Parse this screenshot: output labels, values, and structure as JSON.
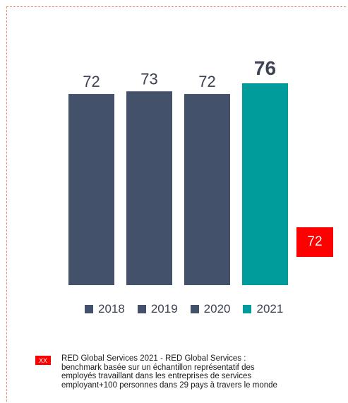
{
  "chart_data": {
    "type": "bar",
    "categories": [
      "2018",
      "2019",
      "2020",
      "2021"
    ],
    "values": [
      72,
      73,
      72,
      76
    ],
    "data_labels": [
      "72",
      "73",
      "72",
      "76"
    ],
    "ylim": [
      0,
      76
    ],
    "grid": false,
    "legend": {
      "placement": "bottom",
      "entries": [
        "2018",
        "2019",
        "2020",
        "2021"
      ]
    },
    "colors": [
      "#44516a",
      "#44516a",
      "#44516a",
      "#009b9b"
    ],
    "benchmark": {
      "value": 72,
      "label": "72",
      "color": "#ff0000"
    }
  },
  "footnote": {
    "badge": "XX",
    "badge_color": "#ff0000",
    "lines": [
      "RED Global Services 2021 - RED Global Services :",
      "benchmark basée sur un échantillon représentatif des",
      "employés travaillant dans les entreprises de services",
      "employant+100 personnes dans 29 pays à travers le monde"
    ]
  }
}
